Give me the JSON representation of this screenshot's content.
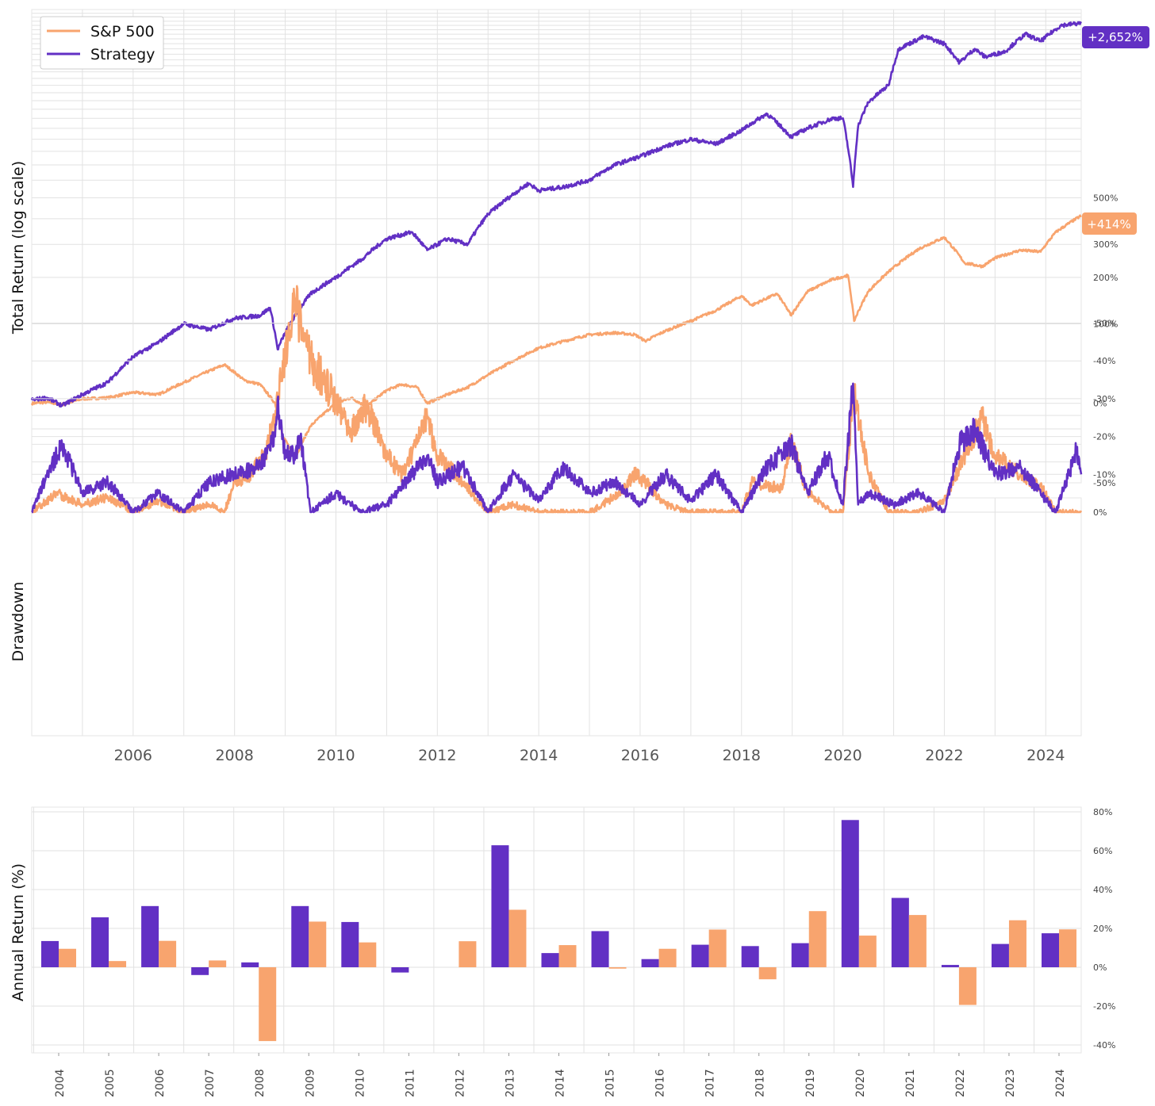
{
  "colors": {
    "strategy": "#6230c4",
    "sp500": "#f8a46e",
    "grid": "#e2e2e2"
  },
  "chart_data": [
    {
      "type": "line",
      "ylabel": "Total Return (log scale)",
      "yscale": "log",
      "ylim": [
        -50,
        3000
      ],
      "xlim": [
        2004.0,
        2024.7
      ],
      "legend": {
        "position": "top-left",
        "entries": [
          "S&P 500",
          "Strategy"
        ]
      },
      "yticks": [
        500,
        300,
        200,
        100,
        0,
        -50
      ],
      "ytick_labels": [
        "500%",
        "300%",
        "200%",
        "100%",
        "0%",
        "-50%"
      ],
      "end_labels": {
        "strategy": "+2,652%",
        "sp500": "+414%"
      },
      "series": [
        {
          "name": "S&P 500",
          "x": [
            2004.0,
            2004.3,
            2004.6,
            2005.0,
            2005.5,
            2006.0,
            2006.5,
            2007.0,
            2007.4,
            2007.8,
            2008.2,
            2008.5,
            2008.8,
            2008.95,
            2009.2,
            2009.5,
            2010.0,
            2010.3,
            2010.6,
            2011.0,
            2011.3,
            2011.6,
            2011.8,
            2012.2,
            2012.6,
            2013.0,
            2013.5,
            2014.0,
            2014.5,
            2015.0,
            2015.5,
            2015.9,
            2016.1,
            2016.5,
            2017.0,
            2017.5,
            2018.0,
            2018.2,
            2018.7,
            2018.98,
            2019.3,
            2019.8,
            2020.1,
            2020.22,
            2020.5,
            2020.9,
            2021.5,
            2022.0,
            2022.4,
            2022.75,
            2023.0,
            2023.5,
            2023.9,
            2024.2,
            2024.7
          ],
          "values": [
            0,
            1,
            -1,
            4,
            5,
            10,
            8,
            20,
            30,
            40,
            22,
            18,
            0,
            -25,
            -38,
            -18,
            0,
            5,
            -3,
            12,
            18,
            15,
            0,
            8,
            15,
            28,
            45,
            62,
            72,
            82,
            85,
            82,
            72,
            88,
            105,
            125,
            155,
            135,
            160,
            115,
            165,
            195,
            205,
            105,
            165,
            215,
            285,
            325,
            240,
            230,
            255,
            280,
            275,
            345,
            414
          ]
        },
        {
          "name": "Strategy",
          "x": [
            2004.0,
            2004.3,
            2004.6,
            2005.0,
            2005.5,
            2006.0,
            2006.5,
            2007.0,
            2007.5,
            2008.0,
            2008.5,
            2008.7,
            2008.85,
            2009.0,
            2009.5,
            2010.0,
            2010.5,
            2011.0,
            2011.5,
            2011.8,
            2012.2,
            2012.6,
            2013.0,
            2013.4,
            2013.8,
            2014.0,
            2014.5,
            2015.0,
            2015.5,
            2016.0,
            2016.5,
            2017.0,
            2017.5,
            2018.0,
            2018.5,
            2018.98,
            2019.3,
            2019.8,
            2020.0,
            2020.2,
            2020.3,
            2020.5,
            2020.9,
            2021.1,
            2021.3,
            2021.6,
            2022.0,
            2022.3,
            2022.6,
            2022.8,
            2023.2,
            2023.6,
            2023.9,
            2024.3,
            2024.7
          ],
          "values": [
            3,
            5,
            -2,
            8,
            20,
            50,
            70,
            100,
            90,
            110,
            115,
            130,
            60,
            85,
            160,
            200,
            250,
            320,
            345,
            280,
            320,
            300,
            420,
            500,
            580,
            540,
            560,
            600,
            700,
            760,
            840,
            900,
            860,
            980,
            1150,
            920,
            1000,
            1100,
            1100,
            560,
            1020,
            1280,
            1500,
            2100,
            2200,
            2350,
            2200,
            1850,
            2100,
            1950,
            2050,
            2400,
            2250,
            2600,
            2652
          ]
        }
      ]
    },
    {
      "type": "line",
      "ylabel": "Drawdown",
      "ylim": [
        -60,
        1
      ],
      "yticks": [
        0,
        -10,
        -20,
        -30,
        -40,
        -50
      ],
      "ytick_labels": [
        "0%",
        "-10%",
        "-20%",
        "-30%",
        "-40%",
        "-50%"
      ],
      "xticks": [
        2006,
        2008,
        2010,
        2012,
        2014,
        2016,
        2018,
        2020,
        2022,
        2024
      ],
      "xtick_labels": [
        "2006",
        "2008",
        "2010",
        "2012",
        "2014",
        "2016",
        "2018",
        "2020",
        "2022",
        "2024"
      ],
      "series": [
        {
          "name": "S&P 500",
          "x": [
            2004.0,
            2004.5,
            2005.0,
            2005.5,
            2006.0,
            2006.5,
            2007.0,
            2007.5,
            2007.8,
            2008.0,
            2008.3,
            2008.6,
            2008.8,
            2008.95,
            2009.1,
            2009.2,
            2009.5,
            2010.0,
            2010.3,
            2010.6,
            2011.0,
            2011.3,
            2011.6,
            2011.8,
            2012.0,
            2012.5,
            2013.0,
            2013.5,
            2014.0,
            2015.0,
            2015.6,
            2015.9,
            2016.1,
            2016.5,
            2017.0,
            2018.0,
            2018.2,
            2018.8,
            2018.98,
            2019.3,
            2019.8,
            2020.0,
            2020.22,
            2020.5,
            2020.9,
            2021.5,
            2022.0,
            2022.5,
            2022.75,
            2023.0,
            2023.5,
            2023.9,
            2024.2,
            2024.7
          ],
          "values": [
            0,
            -5,
            -2,
            -4,
            0,
            -3,
            0,
            -2,
            0,
            -8,
            -10,
            -15,
            -25,
            -40,
            -48,
            -54,
            -40,
            -30,
            -22,
            -28,
            -15,
            -10,
            -18,
            -25,
            -15,
            -8,
            0,
            -2,
            0,
            0,
            -5,
            -10,
            -8,
            -2,
            0,
            0,
            -8,
            -6,
            -19,
            -5,
            0,
            0,
            -33,
            -10,
            0,
            0,
            -3,
            -18,
            -25,
            -15,
            -10,
            -7,
            0,
            0
          ]
        },
        {
          "name": "Strategy",
          "x": [
            2004.0,
            2004.3,
            2004.6,
            2005.0,
            2005.5,
            2006.0,
            2006.5,
            2007.0,
            2007.5,
            2008.0,
            2008.5,
            2008.8,
            2008.85,
            2009.0,
            2009.2,
            2009.3,
            2009.5,
            2010.0,
            2010.5,
            2011.0,
            2011.5,
            2011.8,
            2012.0,
            2012.5,
            2013.0,
            2013.5,
            2014.0,
            2014.5,
            2015.0,
            2015.5,
            2016.0,
            2016.5,
            2017.0,
            2017.5,
            2018.0,
            2018.5,
            2018.98,
            2019.3,
            2019.7,
            2020.0,
            2020.2,
            2020.3,
            2020.5,
            2021.0,
            2021.5,
            2022.0,
            2022.3,
            2022.6,
            2023.0,
            2023.5,
            2023.9,
            2024.2,
            2024.6,
            2024.7
          ],
          "values": [
            0,
            -10,
            -18,
            -5,
            -8,
            0,
            -5,
            0,
            -8,
            -10,
            -12,
            -20,
            -30,
            -15,
            -15,
            -20,
            0,
            -5,
            0,
            -2,
            -10,
            -15,
            -8,
            -12,
            0,
            -10,
            -3,
            -12,
            -5,
            -8,
            -2,
            -10,
            -3,
            -10,
            0,
            -12,
            -18,
            -5,
            -15,
            -2,
            -34,
            -2,
            -5,
            -2,
            -5,
            0,
            -18,
            -22,
            -10,
            -12,
            -5,
            0,
            -16,
            -10
          ]
        }
      ]
    },
    {
      "type": "bar",
      "ylabel": "Annual Return (%)",
      "ylim": [
        -45,
        82
      ],
      "yticks": [
        80,
        60,
        40,
        20,
        0,
        -20,
        -40
      ],
      "ytick_labels": [
        "80%",
        "60%",
        "40%",
        "20%",
        "0%",
        "-20%",
        "-40%"
      ],
      "categories": [
        "2004",
        "2005",
        "2006",
        "2007",
        "2008",
        "2009",
        "2010",
        "2011",
        "2012",
        "2013",
        "2014",
        "2015",
        "2016",
        "2017",
        "2018",
        "2019",
        "2020",
        "2021",
        "2022",
        "2023",
        "2024"
      ],
      "series": [
        {
          "name": "Strategy",
          "values": [
            13.5,
            25.7,
            31.5,
            -4.0,
            2.5,
            31.5,
            23.3,
            -2.7,
            0,
            62.8,
            7.3,
            18.6,
            4.2,
            11.6,
            10.9,
            12.4,
            75.8,
            35.7,
            1.2,
            12.0,
            17.5
          ]
        },
        {
          "name": "S&P 500",
          "values": [
            9.5,
            3.2,
            13.6,
            3.5,
            -38.0,
            23.5,
            12.8,
            0,
            13.4,
            29.6,
            11.4,
            -0.7,
            9.5,
            19.4,
            -6.2,
            28.9,
            16.3,
            26.9,
            -19.4,
            24.2,
            19.5
          ]
        }
      ]
    }
  ]
}
